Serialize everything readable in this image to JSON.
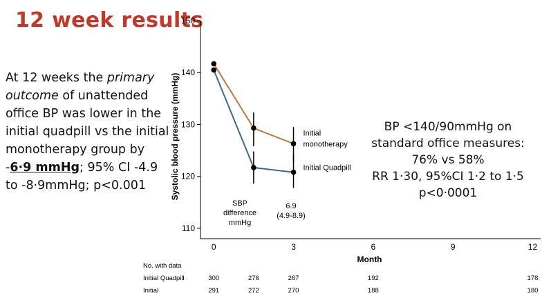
{
  "slide": {
    "title": "12 week results",
    "left_text": {
      "part1": "At 12 weeks the ",
      "italic": "primary outcome",
      "part2": " of unattended office BP was lower in the initial quadpill vs the initial monotherapy group by -",
      "highlight": "6·9 mmHg",
      "part3": "; 95% CI -4.9 to -8·9mmHg; p<0.001"
    },
    "right_box": {
      "line1": "BP <140/90mmHg on",
      "line2": "standard office measures:",
      "line3": "76% vs 58%",
      "line4": "RR 1·30, 95%CI 1·2 to 1·5",
      "line5": "p<0·0001"
    },
    "title_color": "#c0392b"
  },
  "chart_data": {
    "type": "line",
    "ylabel": "Systolic blood pressure (mmHg)",
    "xlabel": "Month",
    "ylim": [
      108,
      150
    ],
    "yticks": [
      110,
      120,
      130,
      140,
      150
    ],
    "xticks": [
      0,
      3,
      6,
      9,
      12
    ],
    "xlim": [
      -0.5,
      12.3
    ],
    "grid": false,
    "series": [
      {
        "name": "Initial monotherapy",
        "color": "#b07a4a",
        "x": [
          0,
          1.5,
          3
        ],
        "y": [
          141.7,
          129.3,
          126.3
        ],
        "ci": [
          null,
          [
            125.8,
            132.3
          ],
          [
            122.8,
            129.5
          ]
        ]
      },
      {
        "name": "Initial Quadpill",
        "color": "#3e6a87",
        "x": [
          0,
          1.5,
          3
        ],
        "y": [
          140.5,
          121.7,
          120.8
        ],
        "ci": [
          null,
          [
            118.6,
            124.8
          ],
          [
            117.8,
            124.2
          ]
        ]
      }
    ],
    "annotations": {
      "difference_label_1": "SBP",
      "difference_label_2": "difference",
      "difference_label_3": "mmHg",
      "difference_value": "6.9",
      "difference_ci": "(4.9-8.9)"
    },
    "table": {
      "header": "No. with data",
      "columns_x": [
        0,
        1.5,
        3,
        6,
        12
      ],
      "rows": [
        {
          "label": "Initial Quadpill",
          "values": [
            "300",
            "276",
            "267",
            "192",
            "178"
          ]
        },
        {
          "label": "Initial",
          "values": [
            "291",
            "272",
            "270",
            "188",
            "180"
          ]
        }
      ]
    }
  }
}
